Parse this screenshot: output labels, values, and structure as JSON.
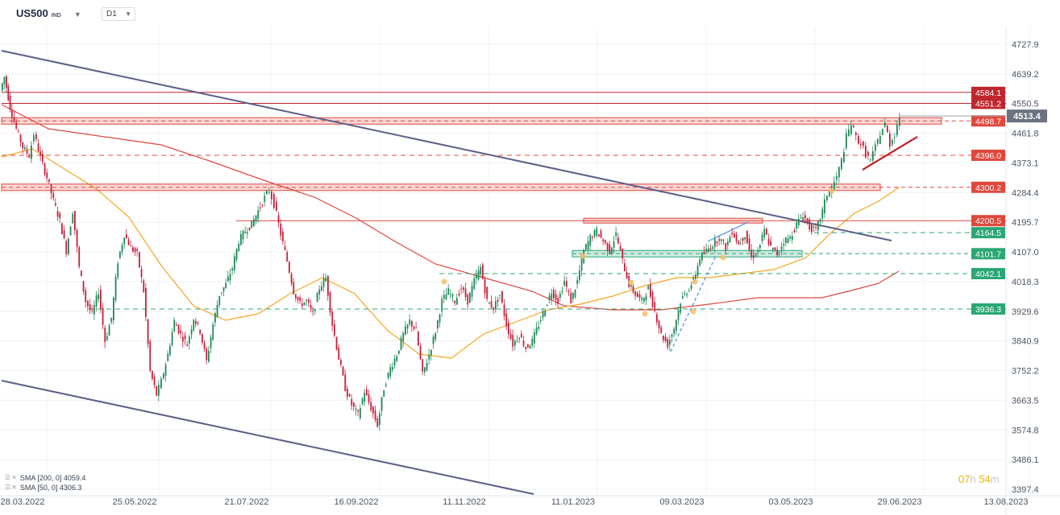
{
  "header": {
    "symbol": "US500",
    "symbol_sub": "IND",
    "timeframe": "D1"
  },
  "countdown": {
    "h": "07",
    "h_unit": "h",
    "m": "54",
    "m_unit": "m"
  },
  "indicators": [
    {
      "label": "SMA [200, 0] 4059.4",
      "color": "#e0483d"
    },
    {
      "label": "SMA [50, 0] 4306.3",
      "color": "#f5a623"
    }
  ],
  "chart_data": {
    "type": "candlestick",
    "title": "",
    "ylim": [
      3397.4,
      4800
    ],
    "x_tick_labels": [
      "28.03.2022",
      "25.05.2022",
      "21.07.2022",
      "16.09.2022",
      "11.11.2022",
      "11.01.2023",
      "09.03.2023",
      "03.05.2023",
      "29.06.2023",
      "13.08.2023"
    ],
    "y_tick_labels": [
      4727.9,
      4639.2,
      4550.5,
      4461.8,
      4373.1,
      4284.4,
      4195.7,
      4107.0,
      4018.3,
      3929.6,
      3840.9,
      3752.2,
      3663.5,
      3574.8,
      3486.1,
      3397.4
    ],
    "current_price": {
      "value": "4513.4",
      "color": "#6b7280"
    },
    "levels": [
      {
        "value": "4584.1",
        "color": "#c0262d",
        "style": "solid"
      },
      {
        "value": "4551.2",
        "color": "#c0262d",
        "style": "solid"
      },
      {
        "value": "4498.7",
        "color": "#e0483d",
        "style": "zone"
      },
      {
        "value": "4396.0",
        "color": "#e0483d",
        "style": "dashed"
      },
      {
        "value": "4300.2",
        "color": "#e0483d",
        "style": "zone"
      },
      {
        "value": "4200.5",
        "color": "#e0483d",
        "style": "solid"
      },
      {
        "value": "4164.5",
        "color": "#2aa775",
        "style": "dashed"
      },
      {
        "value": "4101.7",
        "color": "#2aa775",
        "style": "zone"
      },
      {
        "value": "4042.1",
        "color": "#2aa775",
        "style": "dashed"
      },
      {
        "value": "3936.3",
        "color": "#2aa775",
        "style": "dashed"
      }
    ],
    "price_path": [
      [
        0,
        4590
      ],
      [
        5,
        4630
      ],
      [
        12,
        4540
      ],
      [
        20,
        4475
      ],
      [
        28,
        4420
      ],
      [
        36,
        4395
      ],
      [
        42,
        4460
      ],
      [
        50,
        4390
      ],
      [
        58,
        4330
      ],
      [
        66,
        4260
      ],
      [
        74,
        4200
      ],
      [
        82,
        4110
      ],
      [
        90,
        4230
      ],
      [
        98,
        4060
      ],
      [
        106,
        3960
      ],
      [
        114,
        3920
      ],
      [
        122,
        3990
      ],
      [
        130,
        3840
      ],
      [
        138,
        3910
      ],
      [
        146,
        4080
      ],
      [
        154,
        4160
      ],
      [
        162,
        4120
      ],
      [
        170,
        4100
      ],
      [
        178,
        3990
      ],
      [
        186,
        3750
      ],
      [
        194,
        3680
      ],
      [
        200,
        3720
      ],
      [
        208,
        3800
      ],
      [
        216,
        3900
      ],
      [
        224,
        3860
      ],
      [
        232,
        3830
      ],
      [
        240,
        3910
      ],
      [
        248,
        3870
      ],
      [
        256,
        3780
      ],
      [
        264,
        3890
      ],
      [
        272,
        3980
      ],
      [
        280,
        4010
      ],
      [
        288,
        4060
      ],
      [
        296,
        4140
      ],
      [
        304,
        4170
      ],
      [
        312,
        4190
      ],
      [
        320,
        4230
      ],
      [
        328,
        4270
      ],
      [
        334,
        4290
      ],
      [
        340,
        4250
      ],
      [
        348,
        4160
      ],
      [
        356,
        4080
      ],
      [
        364,
        3990
      ],
      [
        372,
        3950
      ],
      [
        380,
        3960
      ],
      [
        388,
        3920
      ],
      [
        396,
        4000
      ],
      [
        404,
        4030
      ],
      [
        412,
        3890
      ],
      [
        420,
        3790
      ],
      [
        428,
        3700
      ],
      [
        436,
        3650
      ],
      [
        444,
        3620
      ],
      [
        452,
        3690
      ],
      [
        460,
        3640
      ],
      [
        468,
        3590
      ],
      [
        476,
        3700
      ],
      [
        484,
        3760
      ],
      [
        492,
        3800
      ],
      [
        500,
        3860
      ],
      [
        508,
        3900
      ],
      [
        516,
        3870
      ],
      [
        524,
        3740
      ],
      [
        532,
        3800
      ],
      [
        540,
        3870
      ],
      [
        548,
        3960
      ],
      [
        556,
        3990
      ],
      [
        564,
        3960
      ],
      [
        572,
        4000
      ],
      [
        580,
        3960
      ],
      [
        588,
        4020
      ],
      [
        596,
        4060
      ],
      [
        604,
        3960
      ],
      [
        612,
        3940
      ],
      [
        620,
        3980
      ],
      [
        628,
        3890
      ],
      [
        636,
        3830
      ],
      [
        644,
        3860
      ],
      [
        652,
        3820
      ],
      [
        660,
        3840
      ],
      [
        668,
        3890
      ],
      [
        676,
        3940
      ],
      [
        684,
        3990
      ],
      [
        692,
        3960
      ],
      [
        700,
        4020
      ],
      [
        708,
        3960
      ],
      [
        716,
        4020
      ],
      [
        724,
        4110
      ],
      [
        732,
        4150
      ],
      [
        740,
        4170
      ],
      [
        748,
        4140
      ],
      [
        756,
        4110
      ],
      [
        764,
        4160
      ],
      [
        772,
        4080
      ],
      [
        780,
        4010
      ],
      [
        788,
        3980
      ],
      [
        796,
        3960
      ],
      [
        804,
        4000
      ],
      [
        812,
        3930
      ],
      [
        820,
        3860
      ],
      [
        828,
        3830
      ],
      [
        836,
        3880
      ],
      [
        844,
        3960
      ],
      [
        852,
        3990
      ],
      [
        860,
        4020
      ],
      [
        868,
        4090
      ],
      [
        876,
        4110
      ],
      [
        884,
        4130
      ],
      [
        892,
        4150
      ],
      [
        900,
        4120
      ],
      [
        908,
        4170
      ],
      [
        916,
        4130
      ],
      [
        924,
        4160
      ],
      [
        932,
        4090
      ],
      [
        940,
        4110
      ],
      [
        948,
        4170
      ],
      [
        956,
        4120
      ],
      [
        964,
        4100
      ],
      [
        972,
        4140
      ],
      [
        980,
        4150
      ],
      [
        988,
        4190
      ],
      [
        996,
        4220
      ],
      [
        1004,
        4180
      ],
      [
        1012,
        4170
      ],
      [
        1020,
        4230
      ],
      [
        1026,
        4280
      ],
      [
        1032,
        4300
      ],
      [
        1038,
        4330
      ],
      [
        1044,
        4380
      ],
      [
        1050,
        4450
      ],
      [
        1056,
        4490
      ],
      [
        1062,
        4450
      ],
      [
        1068,
        4430
      ],
      [
        1074,
        4400
      ],
      [
        1080,
        4380
      ],
      [
        1086,
        4420
      ],
      [
        1092,
        4460
      ],
      [
        1098,
        4490
      ],
      [
        1104,
        4430
      ],
      [
        1110,
        4460
      ],
      [
        1116,
        4513
      ]
    ]
  }
}
